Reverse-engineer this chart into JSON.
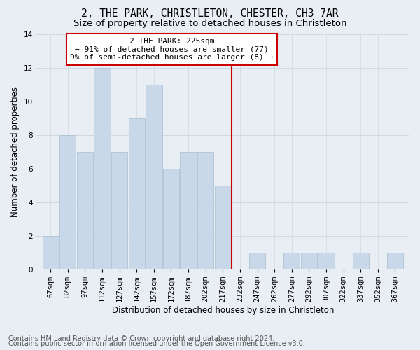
{
  "title": "2, THE PARK, CHRISTLETON, CHESTER, CH3 7AR",
  "subtitle": "Size of property relative to detached houses in Christleton",
  "xlabel": "Distribution of detached houses by size in Christleton",
  "ylabel": "Number of detached properties",
  "footnote1": "Contains HM Land Registry data © Crown copyright and database right 2024.",
  "footnote2": "Contains public sector information licensed under the Open Government Licence v3.0.",
  "bin_labels": [
    "67sqm",
    "82sqm",
    "97sqm",
    "112sqm",
    "127sqm",
    "142sqm",
    "157sqm",
    "172sqm",
    "187sqm",
    "202sqm",
    "217sqm",
    "232sqm",
    "247sqm",
    "262sqm",
    "277sqm",
    "292sqm",
    "307sqm",
    "322sqm",
    "337sqm",
    "352sqm",
    "367sqm"
  ],
  "bar_heights": [
    2,
    8,
    7,
    12,
    7,
    9,
    11,
    6,
    7,
    7,
    5,
    0,
    1,
    0,
    1,
    1,
    1,
    0,
    1,
    0,
    1
  ],
  "bin_edges": [
    67,
    82,
    97,
    112,
    127,
    142,
    157,
    172,
    187,
    202,
    217,
    232,
    247,
    262,
    277,
    292,
    307,
    322,
    337,
    352,
    367,
    382
  ],
  "bar_color": "#c8d8e8",
  "bar_edgecolor": "#a8bece",
  "reference_line_x": 232,
  "reference_line_color": "#cc0000",
  "annotation_text": "2 THE PARK: 225sqm\n← 91% of detached houses are smaller (77)\n9% of semi-detached houses are larger (8) →",
  "annotation_box_color": "#cc0000",
  "ylim": [
    0,
    14
  ],
  "yticks": [
    0,
    2,
    4,
    6,
    8,
    10,
    12,
    14
  ],
  "grid_color": "#d0d8e0",
  "bg_color": "#e8eef4",
  "title_fontsize": 10.5,
  "subtitle_fontsize": 9.5,
  "label_fontsize": 8.5,
  "tick_fontsize": 7.5,
  "footnote_fontsize": 7.0,
  "annot_fontsize": 8.0
}
